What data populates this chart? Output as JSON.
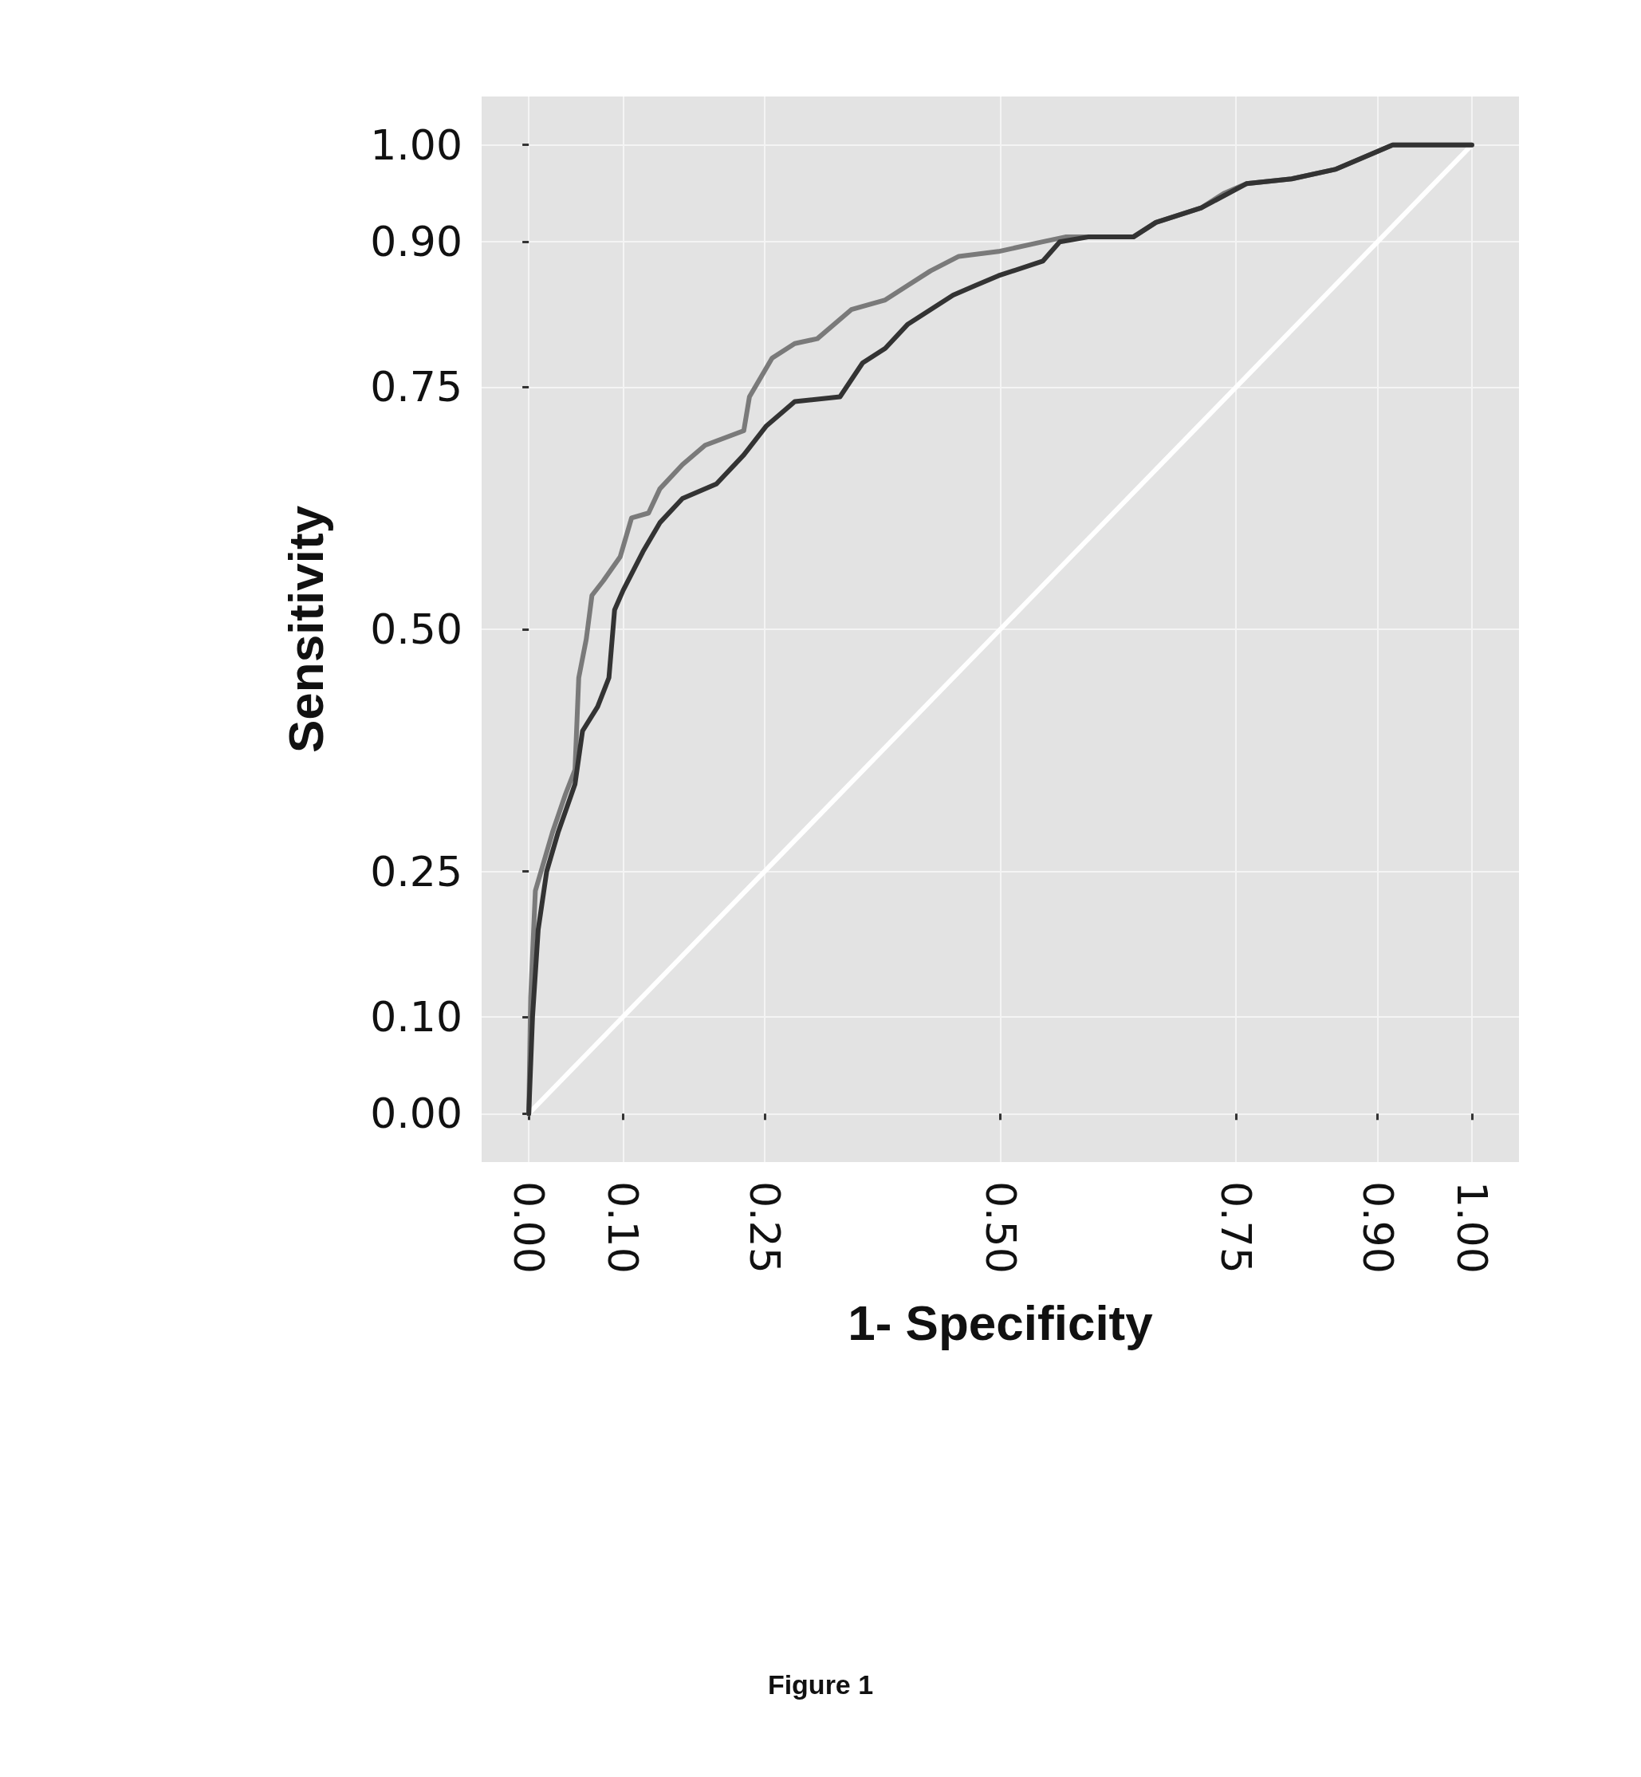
{
  "chart_data": {
    "type": "line",
    "xlabel": "1- Specificity",
    "ylabel": "Sensitivity",
    "annotations": [
      "Figure 1"
    ],
    "xlim": [
      -0.05,
      1.05
    ],
    "ylim": [
      -0.05,
      1.05
    ],
    "xticks": [
      {
        "value": 0,
        "label": "0.00"
      },
      {
        "value": 0.1,
        "label": "0.10"
      },
      {
        "value": 0.25,
        "label": "0.25"
      },
      {
        "value": 0.5,
        "label": "0.50"
      },
      {
        "value": 0.75,
        "label": "0.75"
      },
      {
        "value": 0.9,
        "label": "0.90"
      },
      {
        "value": 1,
        "label": "1.00"
      }
    ],
    "yticks": [
      {
        "value": 0,
        "label": "0.00"
      },
      {
        "value": 0.1,
        "label": "0.10"
      },
      {
        "value": 0.25,
        "label": "0.25"
      },
      {
        "value": 0.5,
        "label": "0.50"
      },
      {
        "value": 0.75,
        "label": "0.75"
      },
      {
        "value": 0.9,
        "label": "0.90"
      },
      {
        "value": 1,
        "label": "1.00"
      }
    ],
    "grid": true,
    "marker": "none",
    "line_style": "solid",
    "series": [
      {
        "color": "#ffffff",
        "x": [
          0,
          1
        ],
        "values": [
          0,
          1
        ]
      },
      {
        "color": "#7a7a7a",
        "x": [
          0,
          0.002,
          0.007,
          0.013,
          0.025,
          0.039,
          0.049,
          0.053,
          0.061,
          0.067,
          0.079,
          0.097,
          0.109,
          0.127,
          0.139,
          0.163,
          0.187,
          0.228,
          0.234,
          0.258,
          0.282,
          0.306,
          0.342,
          0.378,
          0.402,
          0.426,
          0.456,
          0.498,
          0.545,
          0.569,
          0.641,
          0.665,
          0.713,
          0.737,
          0.761,
          0.809,
          0.856,
          0.88,
          0.916,
          1
        ],
        "values": [
          0,
          0.12,
          0.23,
          0.25,
          0.29,
          0.33,
          0.355,
          0.45,
          0.49,
          0.535,
          0.55,
          0.575,
          0.615,
          0.62,
          0.645,
          0.67,
          0.69,
          0.705,
          0.74,
          0.78,
          0.795,
          0.8,
          0.83,
          0.84,
          0.855,
          0.87,
          0.885,
          0.89,
          0.9,
          0.905,
          0.905,
          0.92,
          0.935,
          0.95,
          0.96,
          0.965,
          0.975,
          0.985,
          1,
          1
        ]
      },
      {
        "color": "#333333",
        "x": [
          0,
          0.004,
          0.01,
          0.019,
          0.031,
          0.049,
          0.057,
          0.073,
          0.085,
          0.091,
          0.1,
          0.121,
          0.139,
          0.163,
          0.199,
          0.228,
          0.252,
          0.282,
          0.33,
          0.354,
          0.378,
          0.402,
          0.426,
          0.45,
          0.474,
          0.498,
          0.545,
          0.563,
          0.593,
          0.641,
          0.665,
          0.713,
          0.761,
          0.809,
          0.856,
          0.916,
          1
        ],
        "values": [
          0,
          0.1,
          0.19,
          0.25,
          0.29,
          0.34,
          0.395,
          0.42,
          0.45,
          0.52,
          0.54,
          0.58,
          0.61,
          0.635,
          0.65,
          0.68,
          0.71,
          0.735,
          0.74,
          0.775,
          0.79,
          0.815,
          0.83,
          0.845,
          0.855,
          0.865,
          0.88,
          0.9,
          0.905,
          0.905,
          0.92,
          0.935,
          0.96,
          0.965,
          0.975,
          1,
          1
        ]
      }
    ]
  }
}
